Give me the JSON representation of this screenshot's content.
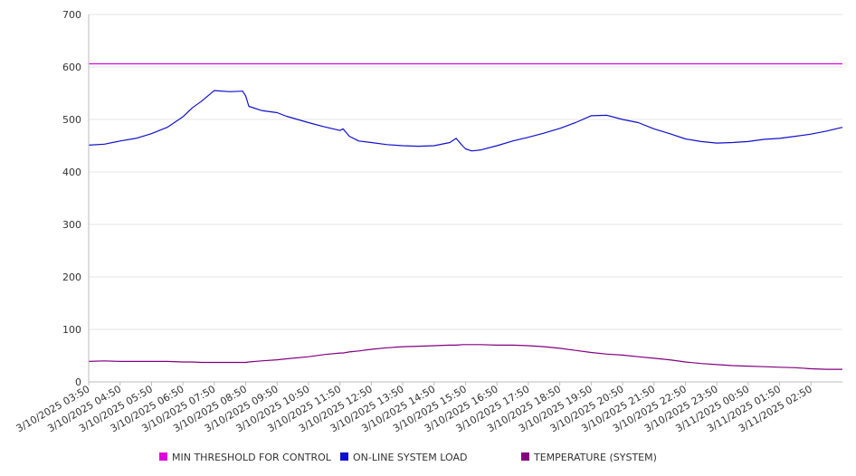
{
  "chart_data": {
    "type": "line",
    "title": "",
    "xlabel": "",
    "ylabel": "",
    "ylim": [
      0,
      700
    ],
    "yticks": [
      0,
      100,
      200,
      300,
      400,
      500,
      600,
      700
    ],
    "grid": "horizontal",
    "legend_position": "bottom",
    "x_tick_labels": [
      "3/10/2025 03:50",
      "3/10/2025 04:50",
      "3/10/2025 05:50",
      "3/10/2025 06:50",
      "3/10/2025 07:50",
      "3/10/2025 08:50",
      "3/10/2025 09:50",
      "3/10/2025 10:50",
      "3/10/2025 11:50",
      "3/10/2025 12:50",
      "3/10/2025 13:50",
      "3/10/2025 14:50",
      "3/10/2025 15:50",
      "3/10/2025 16:50",
      "3/10/2025 17:50",
      "3/10/2025 18:50",
      "3/10/2025 19:50",
      "3/10/2025 20:50",
      "3/10/2025 21:50",
      "3/10/2025 22:50",
      "3/10/2025 23:50",
      "3/11/2025 00:50",
      "3/11/2025 01:50",
      "3/11/2025 02:50"
    ],
    "x_hours": [
      0,
      0.5,
      1,
      1.5,
      2,
      2.5,
      3,
      3.3,
      3.6,
      4,
      4.5,
      4.9,
      5,
      5.1,
      5.5,
      6,
      6.3,
      7,
      7.5,
      8,
      8.1,
      8.3,
      8.6,
      9,
      9.5,
      10,
      10.5,
      11,
      11.5,
      11.7,
      11.9,
      12,
      12.2,
      12.5,
      13,
      13.5,
      14,
      14.5,
      15,
      15.5,
      16,
      16.5,
      17,
      17.5,
      18,
      18.5,
      19,
      19.5,
      20,
      20.5,
      21,
      21.5,
      22,
      22.5,
      23,
      23.5,
      24
    ],
    "series": [
      {
        "name": "MIN THRESHOLD FOR CONTROL",
        "color": "#e000e0",
        "values": [
          606,
          606,
          606,
          606,
          606,
          606,
          606,
          606,
          606,
          606,
          606,
          606,
          606,
          606,
          606,
          606,
          606,
          606,
          606,
          606,
          606,
          606,
          606,
          606,
          606,
          606,
          606,
          606,
          606,
          606,
          606,
          606,
          606,
          606,
          606,
          606,
          606,
          606,
          606,
          606,
          606,
          606,
          606,
          606,
          606,
          606,
          606,
          606,
          606,
          606,
          606,
          606,
          606,
          606,
          606,
          606,
          606
        ]
      },
      {
        "name": "ON-LINE SYSTEM LOAD",
        "color": "#1010cc",
        "values": [
          451,
          453,
          459,
          464,
          473,
          485,
          505,
          522,
          535,
          555,
          553,
          554,
          545,
          525,
          517,
          513,
          506,
          494,
          486,
          479,
          482,
          468,
          459,
          456,
          452,
          450,
          449,
          450,
          456,
          464,
          450,
          444,
          440,
          442,
          450,
          459,
          466,
          474,
          483,
          494,
          507,
          508,
          500,
          494,
          482,
          473,
          463,
          458,
          455,
          456,
          458,
          462,
          464,
          468,
          472,
          478,
          485
        ]
      },
      {
        "name": "TEMPERATURE (SYSTEM)",
        "color": "#800080",
        "values": [
          39,
          40,
          39,
          39,
          39,
          39,
          38,
          38,
          37,
          37,
          37,
          37,
          37,
          38,
          40,
          42,
          44,
          48,
          52,
          55,
          55,
          57,
          59,
          62,
          65,
          67,
          68,
          69,
          70,
          70,
          71,
          71,
          71,
          71,
          70,
          70,
          69,
          67,
          64,
          60,
          56,
          53,
          51,
          48,
          45,
          42,
          38,
          35,
          33,
          31,
          30,
          29,
          28,
          27,
          25,
          24,
          24
        ]
      }
    ]
  }
}
